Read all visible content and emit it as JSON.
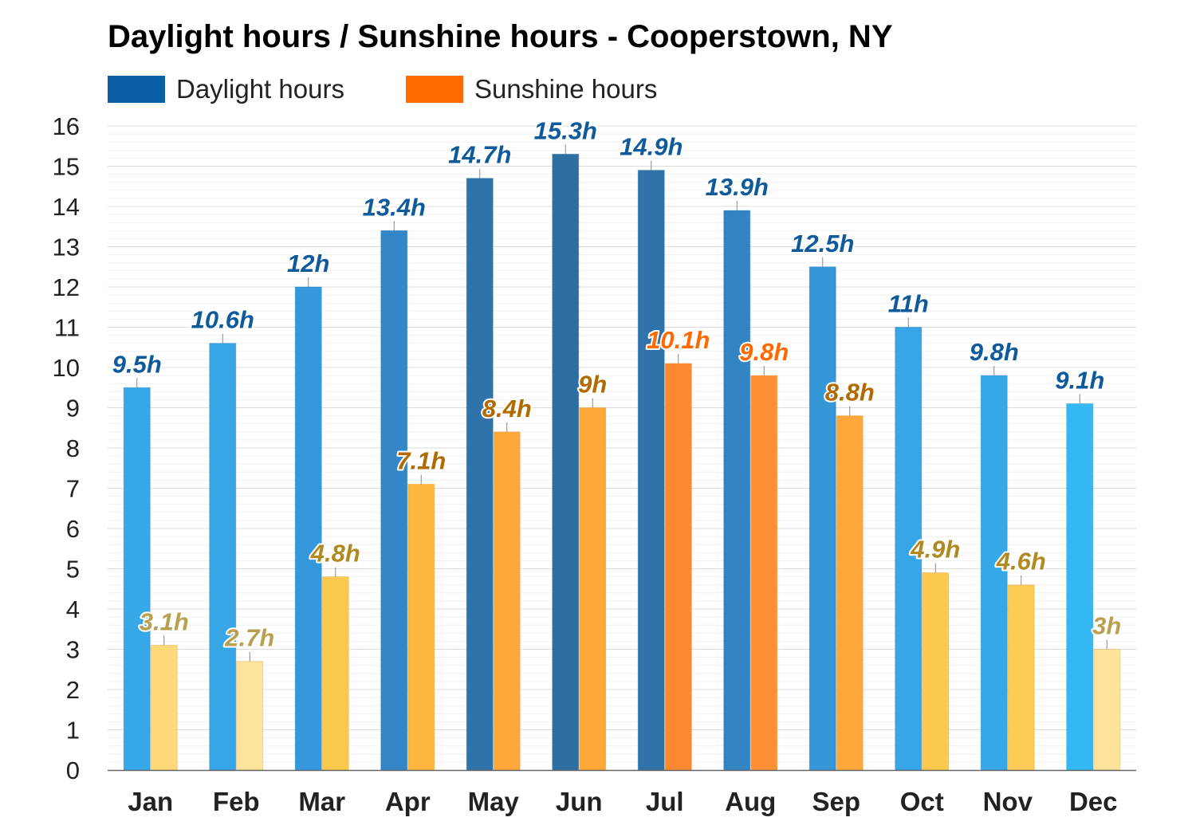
{
  "chart_data": {
    "type": "bar",
    "title": "Daylight hours / Sunshine hours - Cooperstown, NY",
    "categories": [
      "Jan",
      "Feb",
      "Mar",
      "Apr",
      "May",
      "Jun",
      "Jul",
      "Aug",
      "Sep",
      "Oct",
      "Nov",
      "Dec"
    ],
    "series": [
      {
        "name": "Daylight hours",
        "legend_color": "#0b5fa5",
        "values": [
          9.5,
          10.6,
          12,
          13.4,
          14.7,
          15.3,
          14.9,
          13.9,
          12.5,
          11,
          9.8,
          9.1
        ],
        "labels": [
          "9.5h",
          "10.6h",
          "12h",
          "13.4h",
          "14.7h",
          "15.3h",
          "14.9h",
          "13.9h",
          "12.5h",
          "11h",
          "9.8h",
          "9.1h"
        ],
        "bar_colors": [
          "#36a8e8",
          "#36a6e6",
          "#3598dc",
          "#3486c6",
          "#2f73aa",
          "#2d6ea3",
          "#2f73aa",
          "#3284c2",
          "#3596d8",
          "#36a6e6",
          "#36a8e8",
          "#35b9f5"
        ],
        "label_color": "#0e5a9a"
      },
      {
        "name": "Sunshine hours",
        "legend_color": "#ff6a00",
        "values": [
          3.1,
          2.7,
          4.8,
          7.1,
          8.4,
          9,
          10.1,
          9.8,
          8.8,
          4.9,
          4.6,
          3
        ],
        "labels": [
          "3.1h",
          "2.7h",
          "4.8h",
          "7.1h",
          "8.4h",
          "9h",
          "10.1h",
          "9.8h",
          "8.8h",
          "4.9h",
          "4.6h",
          "3h"
        ],
        "bar_colors": [
          "#fdd977",
          "#fde39b",
          "#fcc94f",
          "#fdb53f",
          "#fea73a",
          "#fea83a",
          "#fe8832",
          "#fe8f34",
          "#fea73a",
          "#fcc94f",
          "#fccb55",
          "#fde39b"
        ],
        "label_colors": [
          "#b8a050",
          "#b8a050",
          "#b08a20",
          "#b06a00",
          "#b06a00",
          "#b06a00",
          "#ff6a00",
          "#ff6a00",
          "#b06a00",
          "#b08a20",
          "#b08a20",
          "#b8a050"
        ]
      }
    ],
    "ylim": [
      0,
      16
    ],
    "yticks": [
      0,
      1,
      2,
      3,
      4,
      5,
      6,
      7,
      8,
      9,
      10,
      11,
      12,
      13,
      14,
      15,
      16
    ],
    "grid": true,
    "legend_position": "top-left",
    "xlabel": "",
    "ylabel": ""
  }
}
